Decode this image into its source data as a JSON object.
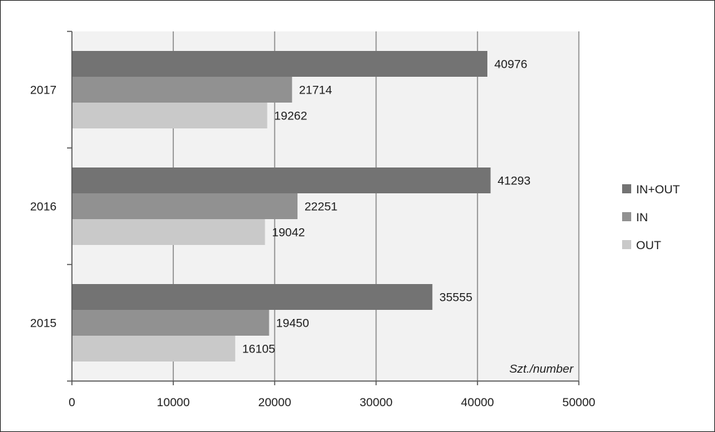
{
  "chart_data": {
    "type": "bar",
    "orientation": "horizontal",
    "categories": [
      "2015",
      "2016",
      "2017"
    ],
    "series": [
      {
        "name": "IN+OUT",
        "values": [
          35555,
          41293,
          40976
        ],
        "color": "#737373"
      },
      {
        "name": "IN",
        "values": [
          19450,
          22251,
          21714
        ],
        "color": "#919191"
      },
      {
        "name": "OUT",
        "values": [
          16105,
          19042,
          19262
        ],
        "color": "#c9c9c9"
      }
    ],
    "xlim": [
      0,
      50000
    ],
    "xticks": [
      "0",
      "10000",
      "20000",
      "30000",
      "40000",
      "50000"
    ],
    "unit_label": "Szt./number",
    "grid": true,
    "legend": "right",
    "plot_background": "#f2f2f2",
    "gridline_color": "#8c8c8c"
  }
}
